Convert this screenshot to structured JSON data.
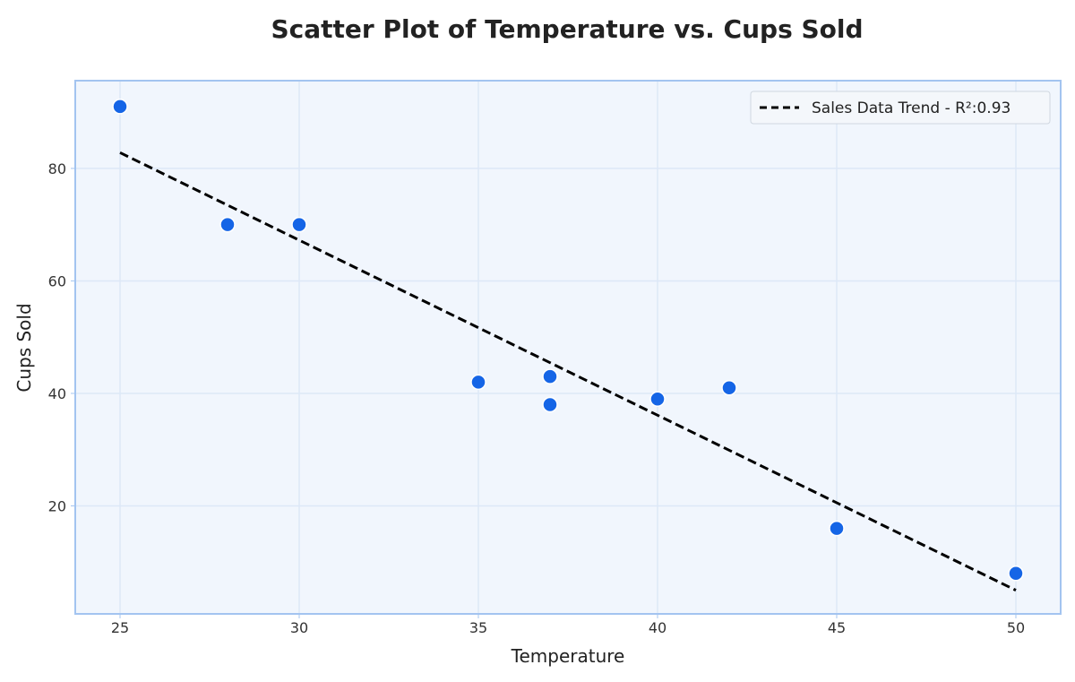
{
  "chart_data": {
    "type": "scatter",
    "title": "Scatter Plot of Temperature vs. Cups Sold",
    "xlabel": "Temperature",
    "ylabel": "Cups Sold",
    "xlim": [
      23.75,
      51.25
    ],
    "ylim": [
      0.8,
      95.6
    ],
    "xticks": [
      25,
      30,
      35,
      40,
      45,
      50
    ],
    "yticks": [
      20,
      40,
      60,
      80
    ],
    "grid": true,
    "legend_position": "top-right",
    "series": [
      {
        "x": [
          25,
          28,
          30,
          35,
          37,
          37,
          40,
          42,
          45,
          50
        ],
        "y": [
          91,
          70,
          70,
          42,
          43,
          38,
          39,
          41,
          16,
          8
        ],
        "color": "#1565e6"
      }
    ],
    "trendline": {
      "name": "Sales Data Trend - R²:0.93",
      "x": [
        25,
        50
      ],
      "y": [
        82.8,
        5.0
      ],
      "style": "dashed",
      "color": "#000000"
    },
    "colors": {
      "plot_background": "#f1f6fd",
      "plot_border": "#a3c4f0",
      "grid": "#dde8f7"
    }
  }
}
